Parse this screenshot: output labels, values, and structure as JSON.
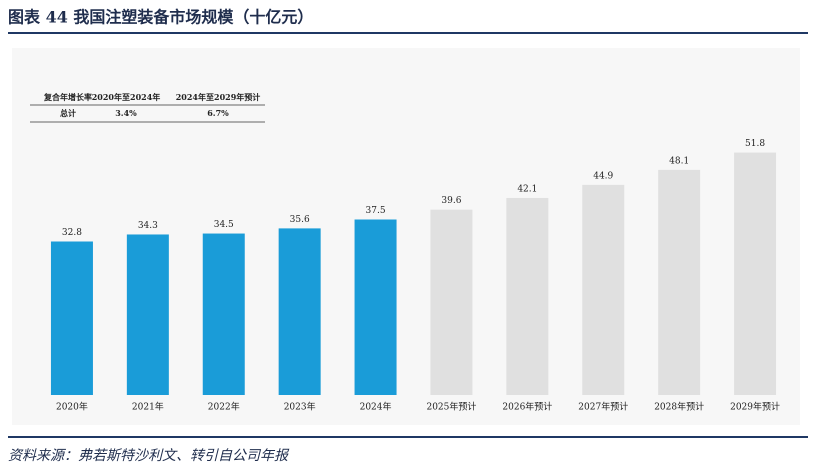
{
  "title": "图表 44 我国注塑装备市场规模（十亿元）",
  "source": "资料来源：弗若斯特沙利文、转引自公司年报",
  "cagr_table": {
    "header": [
      "复合年增长率",
      "2020年至2024年",
      "2024年至2029年预计"
    ],
    "rows": [
      [
        "总计",
        "3.4%",
        "6.7%"
      ]
    ]
  },
  "chart_data": {
    "type": "bar",
    "categories": [
      "2020年",
      "2021年",
      "2022年",
      "2023年",
      "2024年",
      "2025年预计",
      "2026年预计",
      "2027年预计",
      "2028年预计",
      "2029年预计"
    ],
    "values": [
      32.8,
      34.3,
      34.5,
      35.6,
      37.5,
      39.6,
      42.1,
      44.9,
      48.1,
      51.8
    ],
    "colors": [
      "#1a9cd8",
      "#1a9cd8",
      "#1a9cd8",
      "#1a9cd8",
      "#1a9cd8",
      "#e0e0e0",
      "#e0e0e0",
      "#e0e0e0",
      "#e0e0e0",
      "#e0e0e0"
    ]
  }
}
